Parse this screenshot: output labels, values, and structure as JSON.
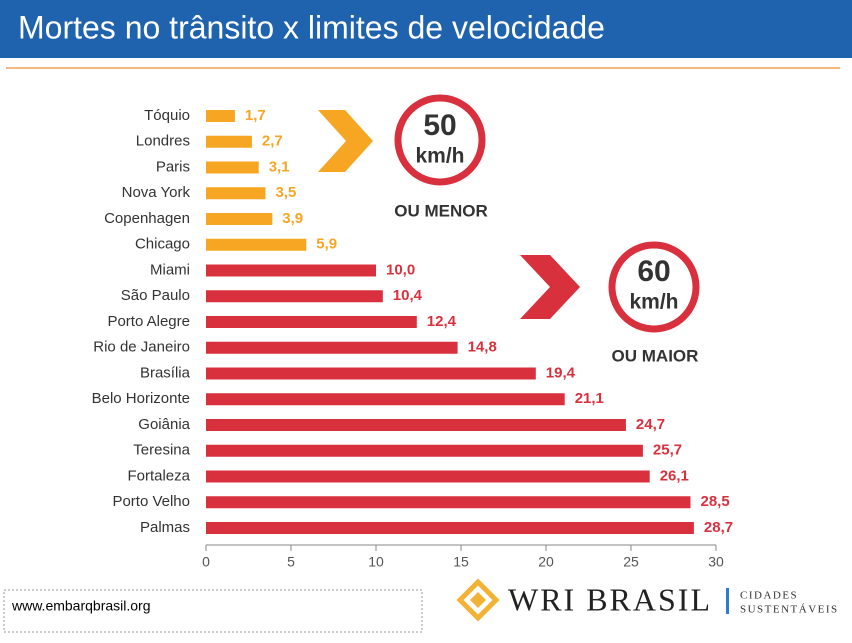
{
  "chart_data": {
    "type": "bar",
    "orientation": "horizontal",
    "title": "Mortes no trânsito x limites de velocidade",
    "categories": [
      "Tóquio",
      "Londres",
      "Paris",
      "Nova York",
      "Copenhagen",
      "Chicago",
      "Miami",
      "São Paulo",
      "Porto Alegre",
      "Rio de Janeiro",
      "Brasília",
      "Belo Horizonte",
      "Goiânia",
      "Teresina",
      "Fortaleza",
      "Porto Velho",
      "Palmas"
    ],
    "values": [
      1.7,
      2.7,
      3.1,
      3.5,
      3.9,
      5.9,
      10.0,
      10.4,
      12.4,
      14.8,
      19.4,
      21.1,
      24.7,
      25.7,
      26.1,
      28.5,
      28.7
    ],
    "value_labels": [
      "1,7",
      "2,7",
      "3,1",
      "3,5",
      "3,9",
      "5,9",
      "10,0",
      "10,4",
      "12,4",
      "14,8",
      "19,4",
      "21,1",
      "24,7",
      "25,7",
      "26,1",
      "28,5",
      "28,7"
    ],
    "colors": [
      "#f6a623",
      "#f6a623",
      "#f6a623",
      "#f6a623",
      "#f6a623",
      "#f6a623",
      "#d9303e",
      "#d9303e",
      "#d9303e",
      "#d9303e",
      "#d9303e",
      "#d9303e",
      "#d9303e",
      "#d9303e",
      "#d9303e",
      "#d9303e",
      "#d9303e"
    ],
    "xlim": [
      0,
      30
    ],
    "xticks": [
      0,
      5,
      10,
      15,
      20,
      25,
      30
    ],
    "annotations": {
      "low_speed": "50",
      "low_unit": "km/h",
      "low_text": "OU MENOR",
      "high_speed": "60",
      "high_unit": "km/h",
      "high_text": "OU MAIOR"
    }
  },
  "footer": {
    "url": "www.embarqbrasil.org",
    "logo": "WRI BRASIL",
    "logo_line1": "CIDADES",
    "logo_line2": "SUSTENTÁVEIS"
  }
}
